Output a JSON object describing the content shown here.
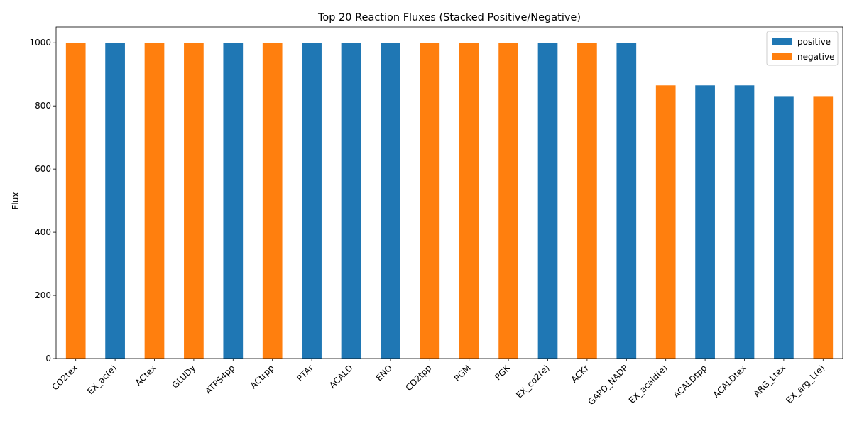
{
  "chart_data": {
    "type": "bar",
    "title": "Top 20 Reaction Fluxes (Stacked Positive/Negative)",
    "xlabel": "",
    "ylabel": "Flux",
    "ylim": [
      0,
      1050
    ],
    "yticks": [
      0,
      200,
      400,
      600,
      800,
      1000
    ],
    "grid": false,
    "stacked": true,
    "legend_position": "top-right",
    "categories": [
      "CO2tex",
      "EX_ac(e)",
      "ACtex",
      "GLUDy",
      "ATPS4pp",
      "ACtrpp",
      "PTAr",
      "ACALD",
      "ENO",
      "CO2tpp",
      "PGM",
      "PGK",
      "EX_co2(e)",
      "ACKr",
      "GAPD_NADP",
      "EX_acald(e)",
      "ACALDtpp",
      "ACALDtex",
      "ARG_Ltex",
      "EX_arg_L(e)"
    ],
    "series": [
      {
        "name": "positive",
        "color": "#1f77b4",
        "values": [
          0,
          1000,
          0,
          0,
          1000,
          0,
          1000,
          1000,
          1000,
          0,
          0,
          0,
          1000,
          0,
          1000,
          0,
          865,
          865,
          831,
          0
        ]
      },
      {
        "name": "negative",
        "color": "#ff7f0e",
        "values": [
          1000,
          0,
          1000,
          1000,
          0,
          1000,
          0,
          0,
          0,
          1000,
          1000,
          1000,
          0,
          1000,
          0,
          865,
          0,
          0,
          0,
          831
        ]
      }
    ]
  }
}
